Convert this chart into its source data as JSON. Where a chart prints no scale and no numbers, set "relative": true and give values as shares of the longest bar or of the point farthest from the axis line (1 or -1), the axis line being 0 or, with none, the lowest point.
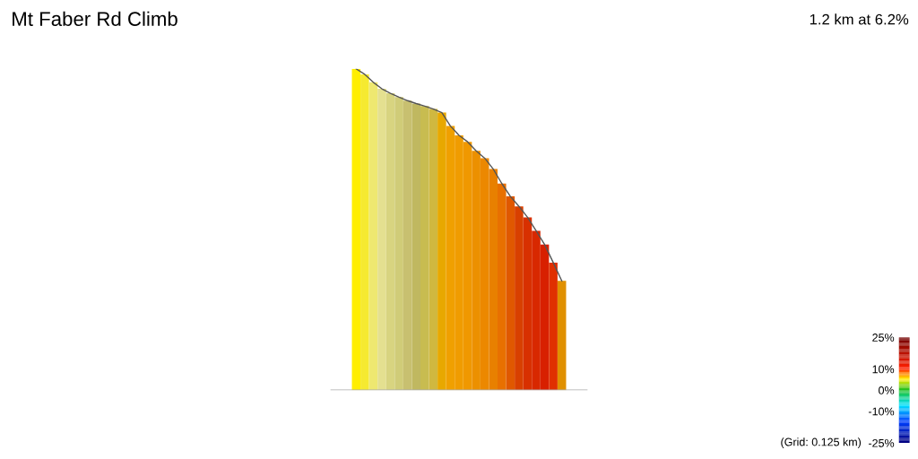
{
  "chart_data": {
    "type": "bar",
    "title": "Mt Faber Rd Climb",
    "subtitle": "1.2 km at 6.2%",
    "relative": true,
    "categories": [
      null,
      null,
      null,
      null,
      null,
      null,
      null,
      null,
      null,
      null,
      null,
      null,
      null,
      null,
      null,
      null,
      null,
      null,
      null,
      null,
      null,
      null,
      null,
      null,
      null
    ],
    "values": [
      1.0,
      0.983,
      0.958,
      0.938,
      0.924,
      0.912,
      0.901,
      0.892,
      0.884,
      0.875,
      0.864,
      0.822,
      0.793,
      0.773,
      0.745,
      0.722,
      0.688,
      0.643,
      0.603,
      0.572,
      0.538,
      0.496,
      0.453,
      0.397,
      0.34
    ],
    "colors": [
      "#ffee00",
      "#f6ea30",
      "#eee870",
      "#e4e090",
      "#d8d480",
      "#d0cc78",
      "#c8c070",
      "#c0b860",
      "#c8bc50",
      "#d0b840",
      "#e8a800",
      "#f0a000",
      "#f09c00",
      "#f09800",
      "#ec9000",
      "#ec8800",
      "#e88000",
      "#e87000",
      "#e05800",
      "#d84000",
      "#d83000",
      "#d82800",
      "#d82000",
      "#e03000",
      "#e09000"
    ],
    "clabel": "(Grid: 0.125 km)",
    "clim": [
      -25,
      25
    ],
    "cticks": [
      {
        "value": 25,
        "label": "25%"
      },
      {
        "value": 10,
        "label": "10%"
      },
      {
        "value": 0,
        "label": "0%"
      },
      {
        "value": -10,
        "label": "-10%"
      },
      {
        "value": -25,
        "label": "-25%"
      }
    ]
  }
}
